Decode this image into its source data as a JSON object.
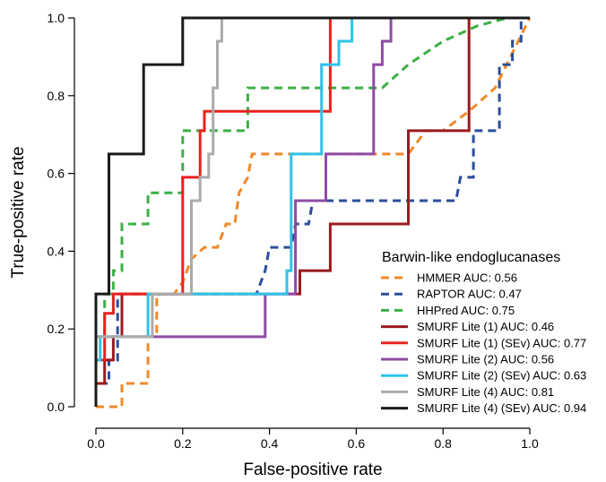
{
  "chart_data": {
    "type": "line",
    "xlabel": "False-positive rate",
    "ylabel": "True-positive rate",
    "xlim": [
      0,
      1
    ],
    "ylim": [
      0,
      1
    ],
    "x_ticks": [
      "0.0",
      "0.2",
      "0.4",
      "0.6",
      "0.8",
      "1.0"
    ],
    "y_ticks": [
      "0.0",
      "0.2",
      "0.4",
      "0.6",
      "0.8",
      "1.0"
    ],
    "grid": false,
    "legend_title": "Barwin-like endoglucanases",
    "legend_position": "bottom-right",
    "series": [
      {
        "name": "HMMER AUC:  0.56",
        "color": "#F0892A",
        "dash": true,
        "step": false,
        "points": [
          [
            0,
            0
          ],
          [
            0.01,
            0
          ],
          [
            0.06,
            0
          ],
          [
            0.06,
            0.06
          ],
          [
            0.12,
            0.06
          ],
          [
            0.12,
            0.18
          ],
          [
            0.14,
            0.18
          ],
          [
            0.14,
            0.29
          ],
          [
            0.18,
            0.29
          ],
          [
            0.2,
            0.32
          ],
          [
            0.22,
            0.38
          ],
          [
            0.25,
            0.41
          ],
          [
            0.28,
            0.41
          ],
          [
            0.3,
            0.47
          ],
          [
            0.32,
            0.47
          ],
          [
            0.33,
            0.55
          ],
          [
            0.35,
            0.59
          ],
          [
            0.36,
            0.65
          ],
          [
            0.72,
            0.65
          ],
          [
            0.76,
            0.71
          ],
          [
            0.8,
            0.71
          ],
          [
            0.86,
            0.76
          ],
          [
            0.92,
            0.82
          ],
          [
            1,
            1
          ]
        ]
      },
      {
        "name": "RAPTOR AUC:  0.47",
        "color": "#2B4E9A",
        "dash": true,
        "step": true,
        "points": [
          [
            0,
            0
          ],
          [
            0,
            0.06
          ],
          [
            0.03,
            0.06
          ],
          [
            0.03,
            0.12
          ],
          [
            0.05,
            0.12
          ],
          [
            0.05,
            0.29
          ],
          [
            0.37,
            0.29
          ],
          [
            0.39,
            0.35
          ],
          [
            0.4,
            0.41
          ],
          [
            0.45,
            0.41
          ],
          [
            0.46,
            0.47
          ],
          [
            0.49,
            0.47
          ],
          [
            0.5,
            0.53
          ],
          [
            0.83,
            0.53
          ],
          [
            0.84,
            0.59
          ],
          [
            0.87,
            0.59
          ],
          [
            0.87,
            0.71
          ],
          [
            0.93,
            0.71
          ],
          [
            0.93,
            0.88
          ],
          [
            0.96,
            0.88
          ],
          [
            0.96,
            0.94
          ],
          [
            0.98,
            0.94
          ],
          [
            0.98,
            1
          ],
          [
            1,
            1
          ]
        ]
      },
      {
        "name": "HHPred AUC:  0.75",
        "color": "#3CAF45",
        "dash": true,
        "step": true,
        "points": [
          [
            0,
            0
          ],
          [
            0,
            0.18
          ],
          [
            0.02,
            0.18
          ],
          [
            0.02,
            0.29
          ],
          [
            0.04,
            0.29
          ],
          [
            0.04,
            0.35
          ],
          [
            0.06,
            0.35
          ],
          [
            0.06,
            0.47
          ],
          [
            0.12,
            0.47
          ],
          [
            0.12,
            0.55
          ],
          [
            0.2,
            0.55
          ],
          [
            0.2,
            0.65
          ],
          [
            0.2,
            0.71
          ],
          [
            0.35,
            0.71
          ],
          [
            0.35,
            0.82
          ],
          [
            0.66,
            0.82
          ],
          [
            0.72,
            0.88
          ],
          [
            0.8,
            0.94
          ],
          [
            0.88,
            0.98
          ],
          [
            0.95,
            1
          ],
          [
            1,
            1
          ]
        ]
      },
      {
        "name": "SMURF Lite (1) AUC:  0.46",
        "color": "#9B1B1E",
        "dash": false,
        "step": true,
        "points": [
          [
            0,
            0
          ],
          [
            0,
            0.06
          ],
          [
            0.02,
            0.06
          ],
          [
            0.02,
            0.12
          ],
          [
            0.04,
            0.12
          ],
          [
            0.04,
            0.18
          ],
          [
            0.06,
            0.18
          ],
          [
            0.06,
            0.29
          ],
          [
            0.47,
            0.29
          ],
          [
            0.47,
            0.35
          ],
          [
            0.54,
            0.35
          ],
          [
            0.54,
            0.47
          ],
          [
            0.72,
            0.47
          ],
          [
            0.72,
            0.71
          ],
          [
            0.86,
            0.71
          ],
          [
            0.86,
            1
          ],
          [
            1,
            1
          ]
        ]
      },
      {
        "name": "SMURF Lite (1) (SEv) AUC:  0.77",
        "color": "#E8221F",
        "dash": false,
        "step": true,
        "points": [
          [
            0,
            0
          ],
          [
            0,
            0.12
          ],
          [
            0.02,
            0.12
          ],
          [
            0.02,
            0.24
          ],
          [
            0.04,
            0.24
          ],
          [
            0.04,
            0.29
          ],
          [
            0.2,
            0.29
          ],
          [
            0.2,
            0.41
          ],
          [
            0.2,
            0.59
          ],
          [
            0.24,
            0.59
          ],
          [
            0.24,
            0.71
          ],
          [
            0.25,
            0.71
          ],
          [
            0.25,
            0.76
          ],
          [
            0.54,
            0.76
          ],
          [
            0.54,
            1
          ],
          [
            1,
            1
          ]
        ]
      },
      {
        "name": "SMURF Lite (2) AUC:  0.56",
        "color": "#8E4BA5",
        "dash": false,
        "step": true,
        "points": [
          [
            0,
            0
          ],
          [
            0,
            0.18
          ],
          [
            0.14,
            0.18
          ],
          [
            0.14,
            0.18
          ],
          [
            0.39,
            0.18
          ],
          [
            0.39,
            0.29
          ],
          [
            0.46,
            0.29
          ],
          [
            0.46,
            0.53
          ],
          [
            0.53,
            0.53
          ],
          [
            0.53,
            0.65
          ],
          [
            0.64,
            0.65
          ],
          [
            0.64,
            0.88
          ],
          [
            0.66,
            0.88
          ],
          [
            0.66,
            0.94
          ],
          [
            0.68,
            0.94
          ],
          [
            0.68,
            1
          ],
          [
            1,
            1
          ]
        ]
      },
      {
        "name": "SMURF Lite (2) (SEv) AUC:  0.63",
        "color": "#2EC3EA",
        "dash": false,
        "step": true,
        "points": [
          [
            0,
            0
          ],
          [
            0,
            0.12
          ],
          [
            0.01,
            0.12
          ],
          [
            0.01,
            0.18
          ],
          [
            0.12,
            0.18
          ],
          [
            0.12,
            0.29
          ],
          [
            0.44,
            0.29
          ],
          [
            0.44,
            0.35
          ],
          [
            0.45,
            0.35
          ],
          [
            0.45,
            0.53
          ],
          [
            0.45,
            0.65
          ],
          [
            0.52,
            0.65
          ],
          [
            0.52,
            0.88
          ],
          [
            0.56,
            0.88
          ],
          [
            0.56,
            0.94
          ],
          [
            0.59,
            0.94
          ],
          [
            0.59,
            1
          ],
          [
            1,
            1
          ]
        ]
      },
      {
        "name": "SMURF Lite (4) AUC:  0.81",
        "color": "#ABABAB",
        "dash": false,
        "step": true,
        "points": [
          [
            0,
            0
          ],
          [
            0,
            0.18
          ],
          [
            0.13,
            0.18
          ],
          [
            0.13,
            0.29
          ],
          [
            0.2,
            0.29
          ],
          [
            0.22,
            0.29
          ],
          [
            0.22,
            0.47
          ],
          [
            0.22,
            0.53
          ],
          [
            0.24,
            0.53
          ],
          [
            0.24,
            0.59
          ],
          [
            0.26,
            0.59
          ],
          [
            0.26,
            0.65
          ],
          [
            0.27,
            0.65
          ],
          [
            0.27,
            0.82
          ],
          [
            0.28,
            0.82
          ],
          [
            0.28,
            0.94
          ],
          [
            0.29,
            0.94
          ],
          [
            0.29,
            1
          ],
          [
            1,
            1
          ]
        ]
      },
      {
        "name": "SMURF Lite (4) (SEv) AUC:  0.94",
        "color": "#1A1A1A",
        "dash": false,
        "step": true,
        "points": [
          [
            0,
            0
          ],
          [
            0,
            0.29
          ],
          [
            0.03,
            0.29
          ],
          [
            0.03,
            0.65
          ],
          [
            0.11,
            0.65
          ],
          [
            0.11,
            0.88
          ],
          [
            0.2,
            0.88
          ],
          [
            0.2,
            1
          ],
          [
            1,
            1
          ]
        ]
      }
    ]
  }
}
